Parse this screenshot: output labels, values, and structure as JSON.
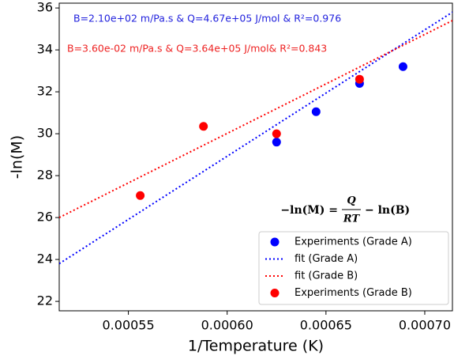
{
  "chart_data": {
    "type": "scatter",
    "xlabel": "1/Temperature (K)",
    "ylabel": "-ln(M)",
    "xlim": [
      0.000515,
      0.000714
    ],
    "ylim": [
      21.55,
      36.23
    ],
    "xticks": [
      {
        "value": 0.00055,
        "label": "0.00055"
      },
      {
        "value": 0.0006,
        "label": "0.00060"
      },
      {
        "value": 0.00065,
        "label": "0.00065"
      },
      {
        "value": 0.0007,
        "label": "0.00070"
      }
    ],
    "yticks": [
      22,
      24,
      26,
      28,
      30,
      32,
      34,
      36
    ],
    "annotations": [
      {
        "text": "B=2.10e+02 m/Pa.s & Q=4.67e+05 J/mol & R²=0.976",
        "color": "#2222dd"
      },
      {
        "text": "B=3.60e-02 m/Pa.s & Q=3.64e+05 J/mol& R²=0.843",
        "color": "#ee2222"
      }
    ],
    "formula": {
      "lhs": "−ln(M) =",
      "numerator": "Q",
      "denominator": "RT",
      "rhs": "− ln(B)"
    },
    "legend": "lower right",
    "series": [
      {
        "name": "Experiments (Grade A)",
        "kind": "points",
        "color": "#0000ff",
        "x": [
          0.000625,
          0.000645,
          0.000667,
          0.000689
        ],
        "values": [
          29.6,
          31.05,
          32.4,
          33.2
        ]
      },
      {
        "name": "fit (Grade A)",
        "kind": "line",
        "color": "#0000ff",
        "x": [
          0.000515,
          0.000714
        ],
        "values": [
          23.8,
          35.8
        ]
      },
      {
        "name": "fit (Grade B)",
        "kind": "line",
        "color": "#ff0000",
        "x": [
          0.000515,
          0.000714
        ],
        "values": [
          26.0,
          35.4
        ]
      },
      {
        "name": "Experiments (Grade B)",
        "kind": "points",
        "color": "#ff0000",
        "x": [
          0.000556,
          0.000588,
          0.000625,
          0.000667
        ],
        "values": [
          27.05,
          30.35,
          30.0,
          32.6
        ]
      }
    ]
  }
}
